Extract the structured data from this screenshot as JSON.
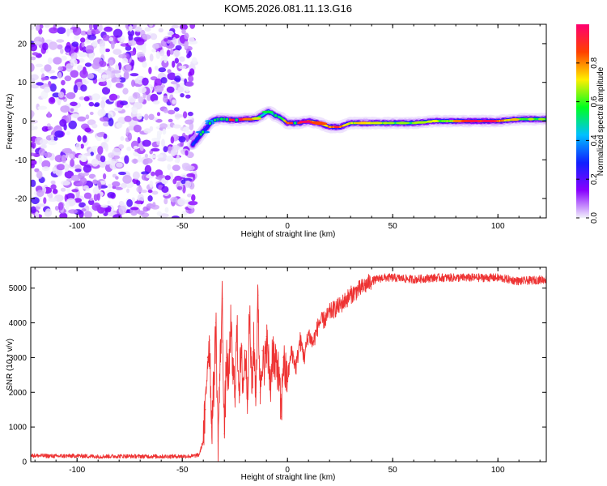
{
  "title": "KOM5.2026.081.11.13.G16",
  "chart_data": [
    {
      "type": "heatmap",
      "title": "KOM5.2026.081.11.13.G16",
      "xlabel": "Height of straight line (km)",
      "ylabel": "Frequency (Hz)",
      "xlim": [
        -122,
        123
      ],
      "ylim": [
        -25,
        25
      ],
      "x_ticks": [
        -100,
        -50,
        0,
        50,
        100
      ],
      "x_tick_labels": [
        "-100",
        "-50",
        "0",
        "50",
        "100"
      ],
      "y_ticks": [
        -20,
        -10,
        0,
        10,
        20
      ],
      "y_tick_labels": [
        "-20",
        "-10",
        "0",
        "10",
        "20"
      ],
      "colorbar": {
        "label": "Normalized spectral amplitude",
        "range": [
          0,
          1
        ],
        "ticks": [
          0.0,
          0.2,
          0.4,
          0.6,
          0.8
        ],
        "tick_labels": [
          "0.0",
          "0.2",
          "0.4",
          "0.6",
          "0.8"
        ],
        "colors": [
          "#f2f2fb",
          "#8800ff",
          "#1020ff",
          "#00c0ff",
          "#00ff20",
          "#ffee00",
          "#ff4000",
          "#ff0070"
        ]
      },
      "noise_region_x": [
        -122,
        -44
      ],
      "ridge": {
        "x": [
          -45,
          -42,
          -39,
          -36,
          -33,
          -30,
          -27,
          -24,
          -21,
          -18,
          -15,
          -12,
          -9,
          -6,
          -3,
          0,
          5,
          10,
          15,
          20,
          25,
          30,
          40,
          50,
          60,
          70,
          80,
          90,
          100,
          110,
          123
        ],
        "freq": [
          -6,
          -4,
          -2,
          0,
          0.5,
          0.5,
          0.3,
          0.3,
          0.5,
          0.5,
          0.6,
          1.5,
          2.5,
          1.5,
          0.8,
          -0.5,
          -0.5,
          0,
          -0.5,
          -1.5,
          -1.5,
          -0.5,
          -0.5,
          -0.5,
          -0.5,
          0,
          0,
          0,
          0,
          0.5,
          0.5
        ],
        "amplitude": [
          0.3,
          0.3,
          0.25,
          0.3,
          0.4,
          0.6,
          0.85,
          0.9,
          0.85,
          0.7,
          0.6,
          0.5,
          0.45,
          0.5,
          0.55,
          0.85,
          0.95,
          0.85,
          0.75,
          0.8,
          0.85,
          0.7,
          0.6,
          0.55,
          0.55,
          0.6,
          0.7,
          0.9,
          0.85,
          0.6,
          0.55
        ]
      }
    },
    {
      "type": "line",
      "xlabel": "Height of straight line (km)",
      "ylabel": "SNR (10 * v/v)",
      "xlim": [
        -122,
        123
      ],
      "ylim": [
        0,
        5600
      ],
      "x_ticks": [
        -100,
        -50,
        0,
        50,
        100
      ],
      "x_tick_labels": [
        "-100",
        "-50",
        "0",
        "50",
        "100"
      ],
      "y_ticks": [
        0,
        1000,
        2000,
        3000,
        4000,
        5000
      ],
      "y_tick_labels": [
        "0",
        "1000",
        "2000",
        "3000",
        "4000",
        "5000"
      ],
      "color": "#ee3333",
      "series": [
        {
          "name": "SNR",
          "x": [
            -122,
            -110,
            -100,
            -90,
            -80,
            -70,
            -60,
            -50,
            -45,
            -42,
            -40,
            -39,
            -38,
            -37,
            -36,
            -35,
            -34,
            -33,
            -32,
            -31,
            -30,
            -29,
            -28,
            -27,
            -26,
            -25,
            -24,
            -23,
            -22,
            -21,
            -20,
            -19,
            -18,
            -17,
            -16,
            -15,
            -14,
            -13,
            -12,
            -11,
            -10,
            -9,
            -8,
            -7,
            -6,
            -5,
            -4,
            -3,
            -2,
            -1,
            0,
            2,
            4,
            6,
            8,
            10,
            12,
            15,
            18,
            20,
            25,
            30,
            35,
            40,
            45,
            50,
            60,
            70,
            80,
            90,
            100,
            110,
            123
          ],
          "y": [
            180,
            160,
            170,
            150,
            160,
            155,
            150,
            155,
            160,
            200,
            600,
            1500,
            3000,
            3500,
            1000,
            2200,
            4000,
            600,
            2800,
            4700,
            800,
            3000,
            2200,
            3900,
            2600,
            2100,
            3800,
            2200,
            3000,
            2200,
            3200,
            2000,
            4300,
            2100,
            3400,
            2000,
            4800,
            2000,
            3200,
            2400,
            3600,
            2800,
            2200,
            3400,
            2600,
            2900,
            2300,
            1300,
            3000,
            2500,
            2400,
            3200,
            2700,
            3500,
            3000,
            3700,
            3400,
            4000,
            4100,
            4300,
            4500,
            4800,
            5000,
            5200,
            5300,
            5300,
            5250,
            5300,
            5300,
            5300,
            5300,
            5200,
            5250
          ]
        }
      ]
    }
  ]
}
